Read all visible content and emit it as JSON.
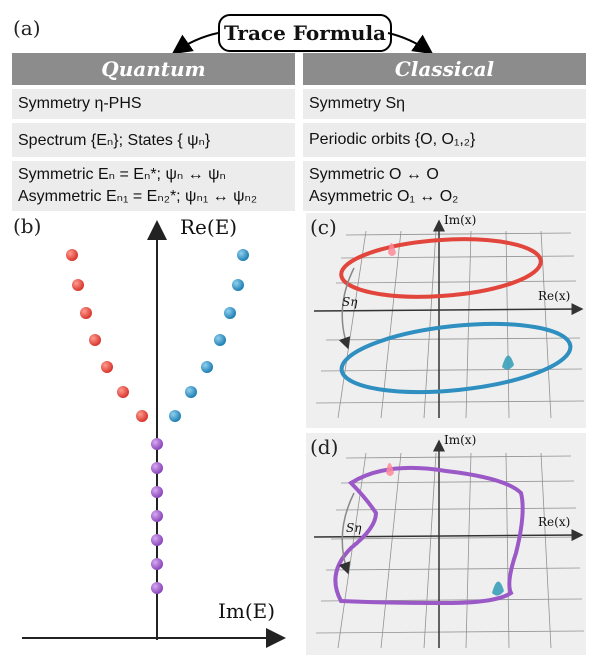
{
  "header": {
    "panel_a_label": "(a)",
    "title": "Trace Formula"
  },
  "quantum": {
    "heading": "Quantum",
    "row1": "Symmetry η-PHS",
    "row2": "Spectrum {Eₙ};  States { ψₙ}",
    "row3_line1": "Symmetric   Eₙ = Eₙ*;   ψₙ ↔ ψₙ",
    "row3_line2": "Asymmetric  Eₙ₁ = Eₙ₂*; ψₙ₁ ↔ ψₙ₂"
  },
  "classical": {
    "heading": "Classical",
    "row1": "Symmetry Sη",
    "row2": "Periodic orbits {O, O₁,₂}",
    "row3_line1": "Symmetric      O ↔ O",
    "row3_line2": "Asymmetric     O₁ ↔ O₂"
  },
  "panel_b": {
    "label": "(b)",
    "y_axis": "Re(E)",
    "x_axis": "Im(E)",
    "colors": {
      "left": "#e2453b",
      "right": "#2f8fc0",
      "center": "#9b59c8"
    }
  },
  "panel_c": {
    "label": "(c)",
    "y_axis": "Im(x)",
    "x_axis": "Re(x)",
    "symmetry": "Sη",
    "colors": {
      "upper_orbit": "#e2453b",
      "lower_orbit": "#2f8fc0"
    }
  },
  "panel_d": {
    "label": "(d)",
    "y_axis": "Im(x)",
    "x_axis": "Re(x)",
    "symmetry": "Sη",
    "colors": {
      "orbit": "#9b59c8"
    }
  }
}
